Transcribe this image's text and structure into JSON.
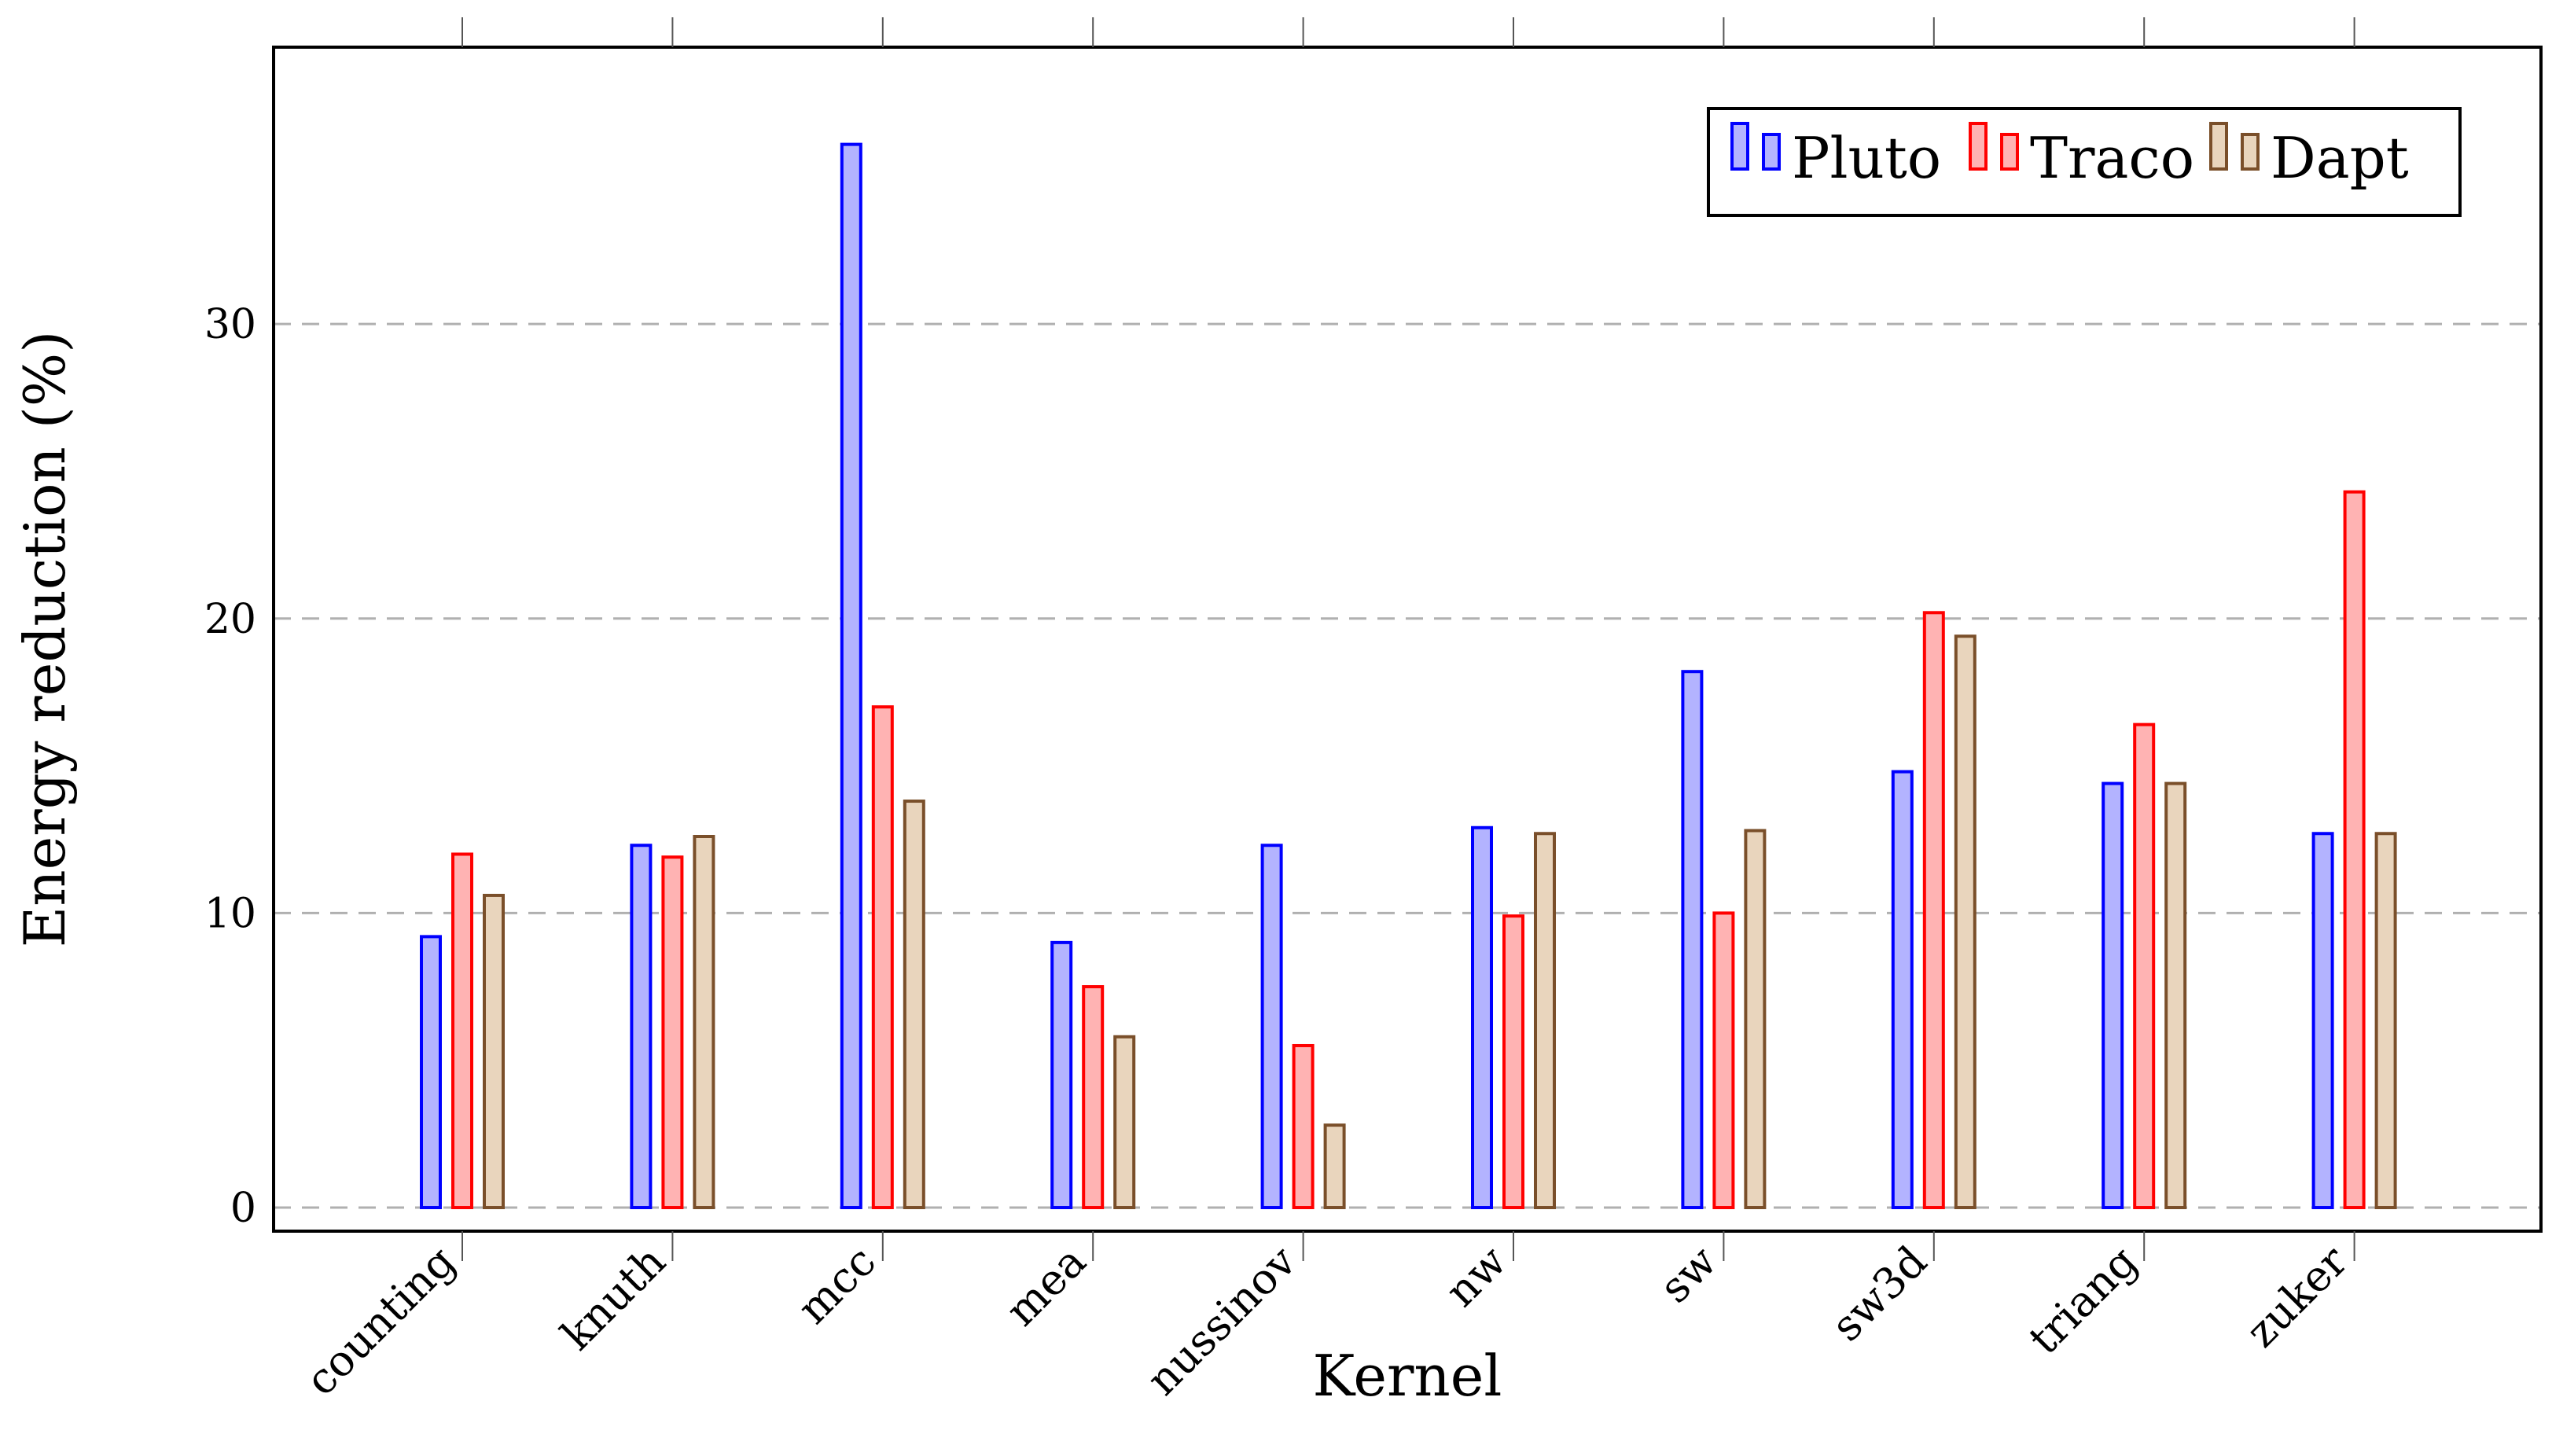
{
  "chart_data": {
    "type": "bar",
    "title": "",
    "xlabel": "Kernel",
    "ylabel": "Energy reduction (%)",
    "categories": [
      "counting",
      "knuth",
      "mcc",
      "mea",
      "nussinov",
      "nw",
      "sw",
      "sw3d",
      "triang",
      "zuker"
    ],
    "series": [
      {
        "name": "Pluto",
        "values": [
          9.2,
          12.3,
          36.1,
          9.0,
          12.3,
          12.9,
          18.2,
          14.8,
          14.4,
          12.7
        ]
      },
      {
        "name": "Traco",
        "values": [
          12.0,
          11.9,
          17.0,
          7.5,
          5.5,
          9.9,
          10.0,
          20.2,
          16.4,
          24.3
        ]
      },
      {
        "name": "Dapt",
        "values": [
          10.6,
          12.6,
          13.8,
          5.8,
          2.8,
          12.7,
          12.8,
          19.4,
          14.4,
          12.7
        ]
      }
    ],
    "ylim": [
      -0.8,
      39.4
    ],
    "yticks": [
      0,
      10,
      20,
      30
    ],
    "grid": "horizontal-dashed",
    "legend_position": "top-right",
    "colors": {
      "Pluto": {
        "stroke": "#0000ff",
        "fill": "#b3b3ff"
      },
      "Traco": {
        "stroke": "#ff0000",
        "fill": "#ffb3b3"
      },
      "Dapt": {
        "stroke": "#7a4f2a",
        "fill": "#e9d5bd"
      }
    }
  }
}
